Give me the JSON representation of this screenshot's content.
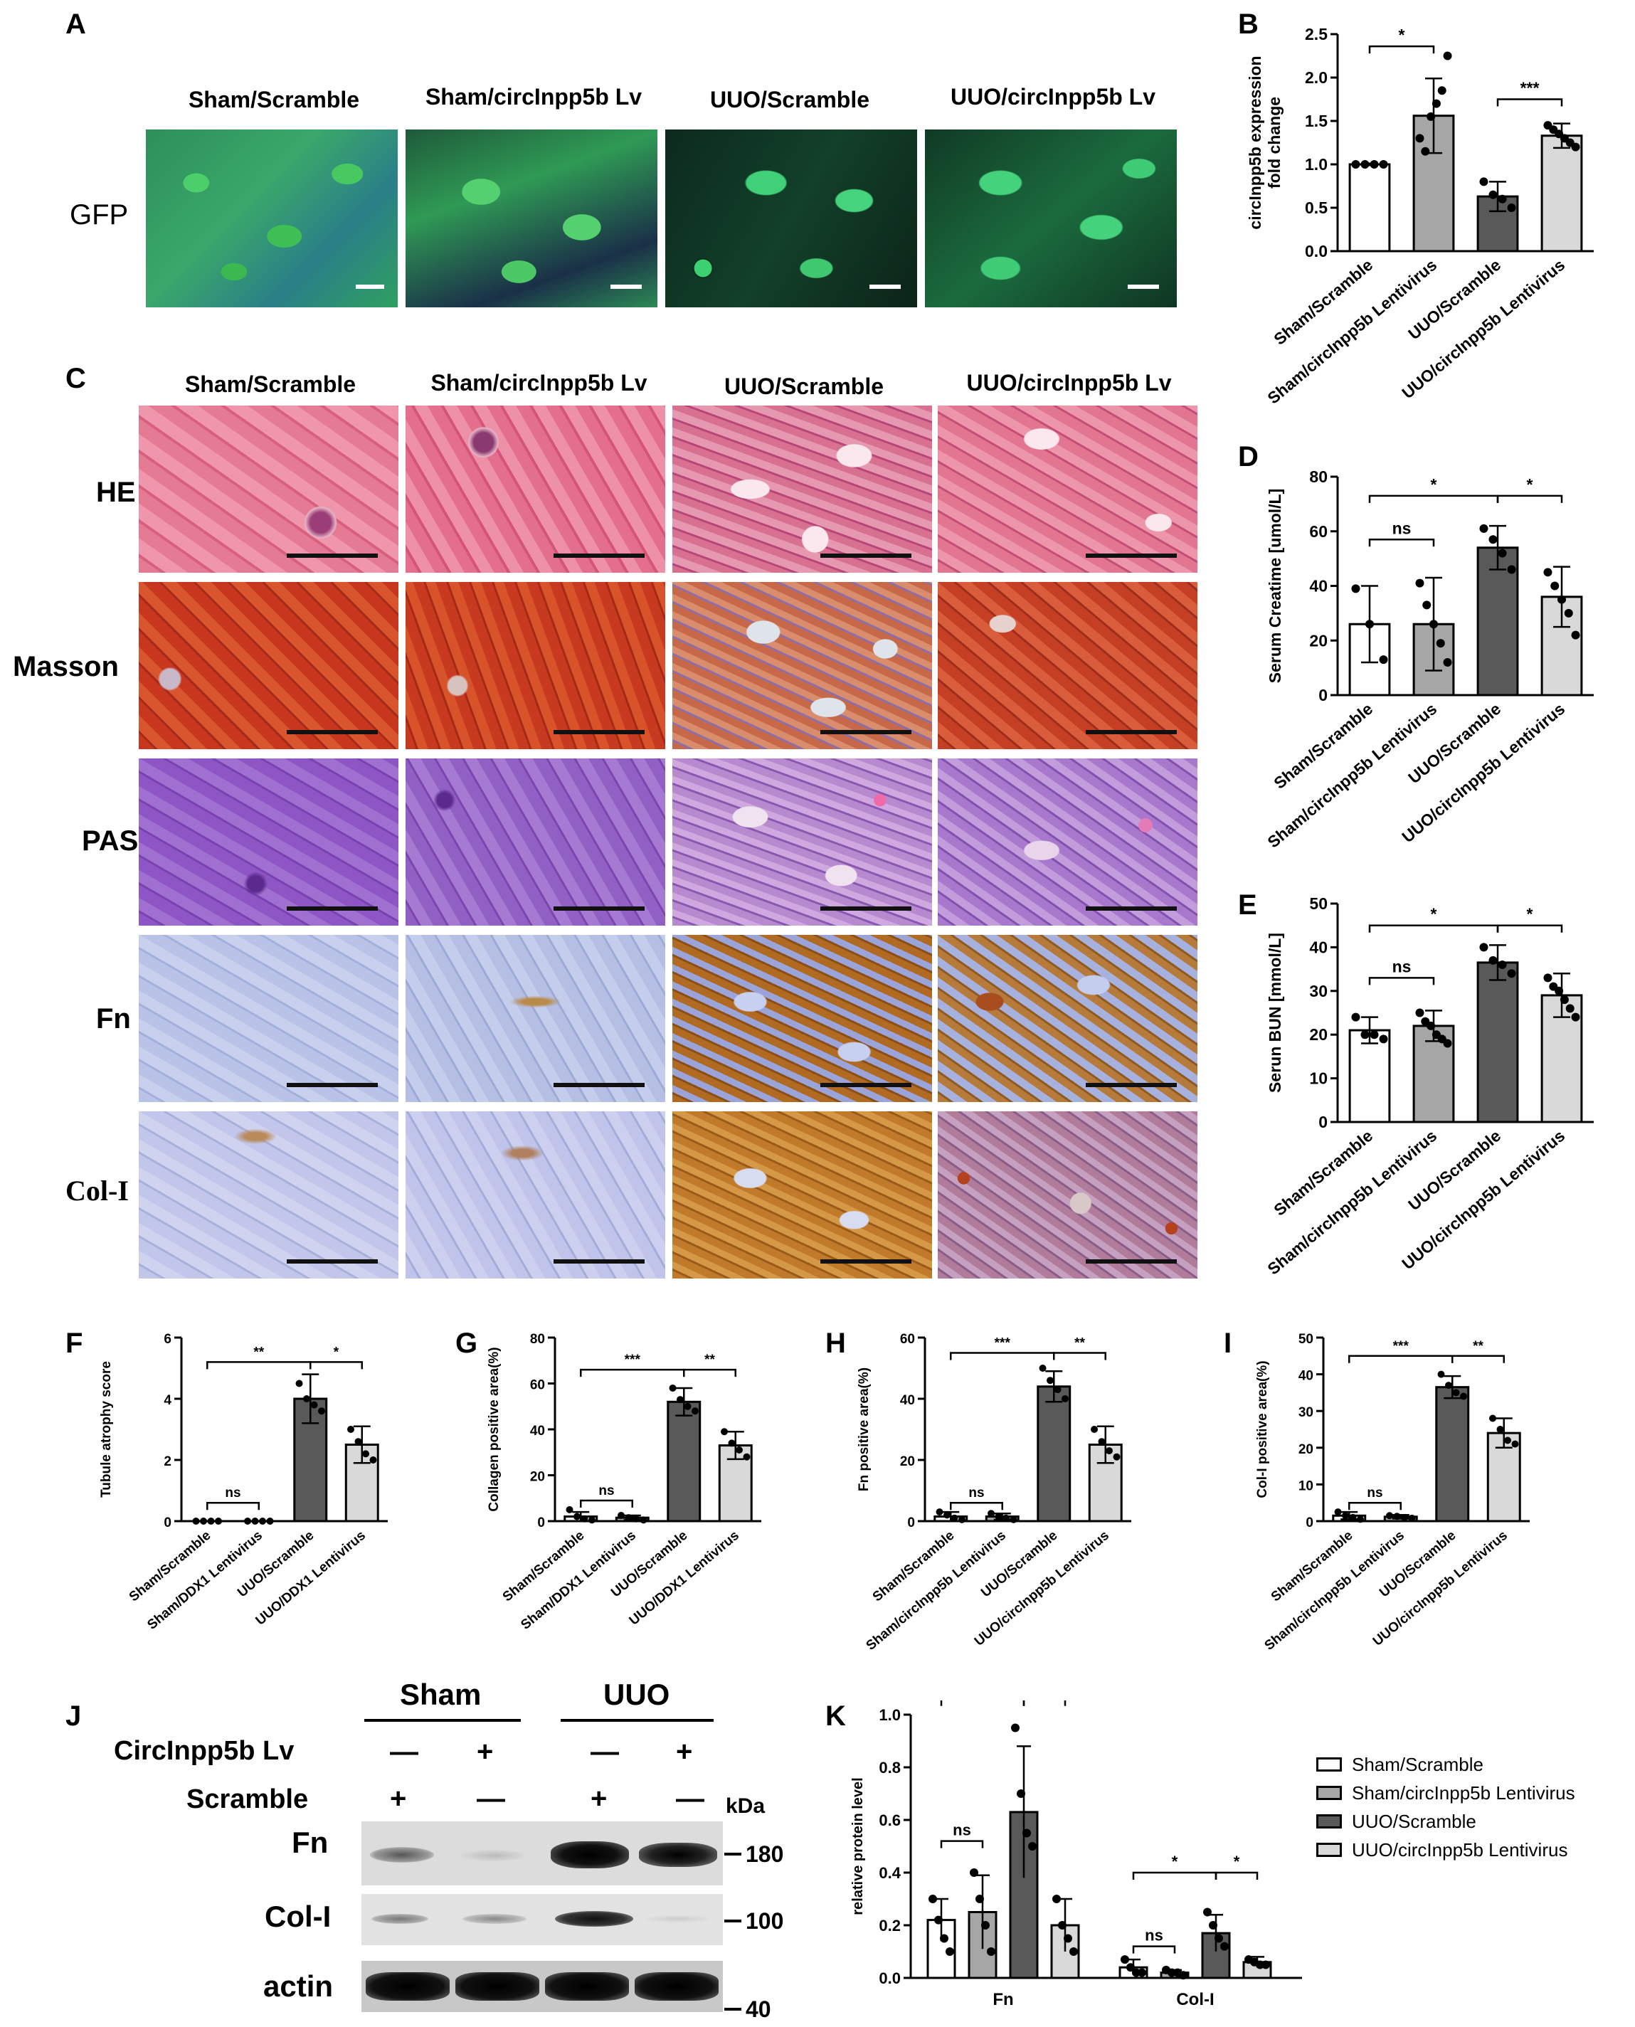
{
  "panel_letters": [
    "A",
    "B",
    "C",
    "D",
    "E",
    "F",
    "G",
    "H",
    "I",
    "J",
    "K"
  ],
  "panelA": {
    "columns": [
      "Sham/Scramble",
      "Sham/circInpp5b Lv",
      "UUO/Scramble",
      "UUO/circInpp5b Lv"
    ],
    "row_label": "GFP"
  },
  "panelC": {
    "columns": [
      "Sham/Scramble",
      "Sham/circInpp5b Lv",
      "UUO/Scramble",
      "UUO/circInpp5b Lv"
    ],
    "rows": [
      "HE",
      "Masson",
      "PAS",
      "Fn",
      "Col-I"
    ]
  },
  "colors": {
    "white_bar": "#ffffff",
    "sham_lv_bar": "#a6a6a6",
    "uuo_scr_bar": "#595959",
    "uuo_lv_bar": "#d9d9d9",
    "gfp_green": "#3fbf55",
    "gfp_blue": "#1a2fa0",
    "he_pink": "#e06a86",
    "masson_red": "#c9381e",
    "pas_purple": "#8a4fc0",
    "ihc_blue": "#b7c2e6",
    "ihc_brown": "#b06a22"
  },
  "chart_data": [
    {
      "id": "B",
      "type": "bar",
      "categories": [
        "Sham/Scramble",
        "Sham/circInpp5b Lentivirus",
        "UUO/Scramble",
        "UUO/circInpp5b Lentivirus"
      ],
      "values": [
        1.0,
        1.56,
        0.63,
        1.33
      ],
      "errors": [
        0.01,
        0.43,
        0.17,
        0.14
      ],
      "points": [
        [
          1,
          1,
          1,
          1
        ],
        [
          1.3,
          1.15,
          1.55,
          1.7,
          1.85,
          2.25
        ],
        [
          0.8,
          0.65,
          0.6,
          0.5
        ],
        [
          1.45,
          1.4,
          1.35,
          1.3,
          1.25,
          1.2
        ]
      ],
      "ylabel": "circInpp5b expression\nfold change",
      "ylim": [
        0,
        2.5
      ],
      "yticks": [
        "0.0",
        "0.5",
        "1.0",
        "1.5",
        "2.0",
        "2.5"
      ],
      "sig": [
        {
          "a": 0,
          "b": 1,
          "y": 2.36,
          "label": "*"
        },
        {
          "a": 2,
          "b": 3,
          "y": 1.75,
          "label": "***"
        }
      ]
    },
    {
      "id": "D",
      "type": "bar",
      "categories": [
        "Sham/Scramble",
        "Sham/circInpp5b Lentivirus",
        "UUO/Scramble",
        "UUO/circInpp5b Lentivirus"
      ],
      "values": [
        26,
        26,
        54,
        36
      ],
      "errors": [
        14,
        17,
        8,
        11
      ],
      "points": [
        [
          39,
          26,
          13
        ],
        [
          41,
          33,
          26,
          19,
          12
        ],
        [
          61,
          57,
          52,
          46
        ],
        [
          45,
          40,
          35,
          30,
          22
        ]
      ],
      "ylabel": "Serum Creatime [umol/L]",
      "ylim": [
        0,
        80
      ],
      "yticks": [
        "0",
        "20",
        "40",
        "60",
        "80"
      ],
      "sig": [
        {
          "a": 0,
          "b": 2,
          "y": 73,
          "label": "*"
        },
        {
          "a": 2,
          "b": 3,
          "y": 73,
          "label": "*"
        },
        {
          "a": 0,
          "b": 1,
          "y": 57,
          "label": "ns"
        }
      ]
    },
    {
      "id": "E",
      "type": "bar",
      "categories": [
        "Sham/Scramble",
        "Sham/circInpp5b Lentivirus",
        "UUO/Scramble",
        "UUO/circInpp5b Lentivirus"
      ],
      "values": [
        21,
        22,
        36.5,
        29
      ],
      "errors": [
        3,
        3.5,
        4,
        5
      ],
      "points": [
        [
          24,
          20,
          20,
          19
        ],
        [
          25,
          23,
          22,
          20,
          19,
          18
        ],
        [
          40,
          37,
          36,
          34
        ],
        [
          33,
          31,
          30,
          28,
          26,
          24
        ]
      ],
      "ylabel": "Serun BUN [mmol/L]",
      "ylim": [
        0,
        50
      ],
      "yticks": [
        "0",
        "10",
        "20",
        "30",
        "40",
        "50"
      ],
      "sig": [
        {
          "a": 0,
          "b": 2,
          "y": 45,
          "label": "*"
        },
        {
          "a": 2,
          "b": 3,
          "y": 45,
          "label": "*"
        },
        {
          "a": 0,
          "b": 1,
          "y": 33,
          "label": "ns"
        }
      ]
    },
    {
      "id": "F",
      "type": "bar",
      "categories": [
        "Sham/Scramble",
        "Sham/DDX1 Lentivirus",
        "UUO/Scramble",
        "UUO/DDX1 Lentivirus"
      ],
      "values": [
        0,
        0,
        4,
        2.5
      ],
      "errors": [
        0,
        0,
        0.8,
        0.6
      ],
      "points": [
        [
          0,
          0,
          0,
          0
        ],
        [
          0,
          0,
          0,
          0
        ],
        [
          4.5,
          4,
          3.8,
          3.6
        ],
        [
          3,
          2.6,
          2.2,
          2.0
        ]
      ],
      "ylabel": "Tubule atrophy score",
      "ylim": [
        0,
        6
      ],
      "yticks": [
        "0",
        "2",
        "4",
        "6"
      ],
      "sig": [
        {
          "a": 0,
          "b": 2,
          "y": 5.2,
          "label": "**"
        },
        {
          "a": 2,
          "b": 3,
          "y": 5.2,
          "label": "*"
        },
        {
          "a": 0,
          "b": 1,
          "y": 0.6,
          "label": "ns"
        }
      ]
    },
    {
      "id": "G",
      "type": "bar",
      "categories": [
        "Sham/Scramble",
        "Sham/DDX1 Lentivirus",
        "UUO/Scramble",
        "UUO/DDX1 Lentivirus"
      ],
      "values": [
        2,
        1.5,
        52,
        33
      ],
      "errors": [
        2,
        1,
        6,
        6
      ],
      "points": [
        [
          5,
          2,
          1,
          0.5
        ],
        [
          2.5,
          1.5,
          1,
          0.5
        ],
        [
          58,
          53,
          50,
          48
        ],
        [
          39,
          34,
          31,
          28
        ]
      ],
      "ylabel": "Collagen positive area(%)",
      "ylim": [
        0,
        80
      ],
      "yticks": [
        "0",
        "20",
        "40",
        "60",
        "80"
      ],
      "sig": [
        {
          "a": 0,
          "b": 2,
          "y": 66,
          "label": "***"
        },
        {
          "a": 2,
          "b": 3,
          "y": 66,
          "label": "**"
        },
        {
          "a": 0,
          "b": 1,
          "y": 9,
          "label": "ns"
        }
      ]
    },
    {
      "id": "H",
      "type": "bar",
      "categories": [
        "Sham/Scramble",
        "Sham/circInpp5b Lentivirus",
        "UUO/Scramble",
        "UUO/circInpp5b Lentivirus"
      ],
      "values": [
        1.5,
        1.5,
        44,
        25
      ],
      "errors": [
        1.5,
        1,
        5,
        6
      ],
      "points": [
        [
          3,
          2,
          1,
          0.5
        ],
        [
          2.5,
          1.5,
          1,
          0.5
        ],
        [
          50,
          46,
          43,
          40
        ],
        [
          30,
          26,
          23,
          21
        ]
      ],
      "ylabel": "Fn positive area(%)",
      "ylim": [
        0,
        60
      ],
      "yticks": [
        "0",
        "20",
        "40",
        "60"
      ],
      "sig": [
        {
          "a": 0,
          "b": 2,
          "y": 55,
          "label": "***"
        },
        {
          "a": 2,
          "b": 3,
          "y": 55,
          "label": "**"
        },
        {
          "a": 0,
          "b": 1,
          "y": 6,
          "label": "ns"
        }
      ]
    },
    {
      "id": "I",
      "type": "bar",
      "categories": [
        "Sham/Scramble",
        "Sham/circInpp5b Lentivirus",
        "UUO/Scramble",
        "UUO/circInpp5b Lentivirus"
      ],
      "values": [
        1.5,
        1.2,
        36.5,
        24
      ],
      "errors": [
        1,
        0.5,
        3,
        4
      ],
      "points": [
        [
          2.5,
          1.5,
          1,
          0.5
        ],
        [
          1.5,
          1.3,
          1,
          0.8
        ],
        [
          40,
          37,
          35,
          34
        ],
        [
          28,
          25,
          22,
          21
        ]
      ],
      "ylabel": "Col-I positive area(%)",
      "ylim": [
        0,
        50
      ],
      "yticks": [
        "0",
        "10",
        "20",
        "30",
        "40",
        "50"
      ],
      "sig": [
        {
          "a": 0,
          "b": 2,
          "y": 45,
          "label": "***"
        },
        {
          "a": 2,
          "b": 3,
          "y": 45,
          "label": "**"
        },
        {
          "a": 0,
          "b": 1,
          "y": 5,
          "label": "ns"
        }
      ]
    },
    {
      "id": "K",
      "type": "grouped_bar",
      "groups": [
        "Fn",
        "Col-I"
      ],
      "series": [
        {
          "name": "Sham/Scramble",
          "values": [
            0.22,
            0.04
          ],
          "errors": [
            0.08,
            0.03
          ],
          "points": [
            [
              0.3,
              0.22,
              0.15,
              0.1
            ],
            [
              0.07,
              0.04,
              0.02,
              0.02
            ]
          ]
        },
        {
          "name": "Sham/circInpp5b Lentivirus",
          "values": [
            0.25,
            0.02
          ],
          "errors": [
            0.14,
            0.01
          ],
          "points": [
            [
              0.4,
              0.3,
              0.2,
              0.1
            ],
            [
              0.03,
              0.02,
              0.02,
              0.01
            ]
          ]
        },
        {
          "name": "UUO/Scramble",
          "values": [
            0.63,
            0.17
          ],
          "errors": [
            0.25,
            0.07
          ],
          "points": [
            [
              0.95,
              0.7,
              0.55,
              0.5
            ],
            [
              0.25,
              0.2,
              0.15,
              0.12
            ]
          ]
        },
        {
          "name": "UUO/circInpp5b Lentivirus",
          "values": [
            0.2,
            0.06
          ],
          "errors": [
            0.1,
            0.02
          ],
          "points": [
            [
              0.3,
              0.2,
              0.15,
              0.1
            ],
            [
              0.07,
              0.06,
              0.05,
              0.05
            ]
          ]
        }
      ],
      "ylabel": "relative protein level",
      "ylim": [
        0,
        1.0
      ],
      "yticks": [
        "0.0",
        "0.2",
        "0.4",
        "0.6",
        "0.8",
        "1.0"
      ]
    }
  ],
  "panelJ": {
    "groups": [
      "Sham",
      "UUO"
    ],
    "row1_label": "CircInpp5b Lv",
    "row1_signs": [
      "—",
      "+",
      "—",
      "+"
    ],
    "row2_label": "Scramble",
    "row2_signs": [
      "+",
      "—",
      "+",
      "—"
    ],
    "kda": "kDa",
    "blots": [
      {
        "label": "Fn",
        "marker": "180"
      },
      {
        "label": "Col-I",
        "marker": "100"
      },
      {
        "label": "actin",
        "marker": "40"
      }
    ]
  },
  "panelK_sig": [
    {
      "label": "ns"
    },
    {
      "label": "*"
    },
    {
      "label": "*"
    },
    {
      "label": "ns"
    },
    {
      "label": "*"
    },
    {
      "label": "*"
    }
  ]
}
